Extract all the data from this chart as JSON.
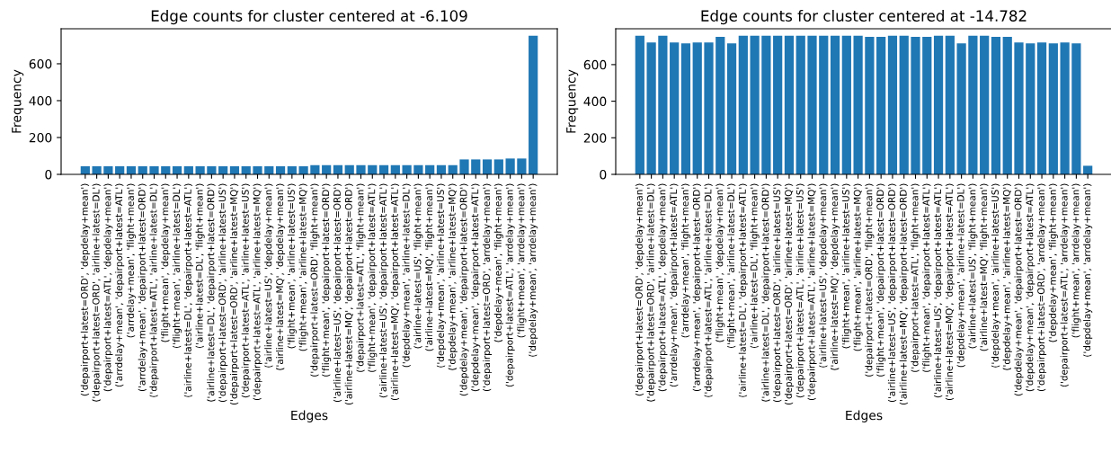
{
  "chart_data": [
    {
      "type": "bar",
      "title": "Edge counts for cluster centered at -6.109",
      "xlabel": "Edges",
      "ylabel": "Frequency",
      "color": "#1f77b4",
      "categories": [
        "('depairport+latest=ORD', 'depdelay+mean')",
        "('depairport+latest=ORD', 'airline+latest=DL')",
        "('depairport+latest=ATL', 'depdelay+mean')",
        "('arrdelay+mean', 'depairport+latest=ATL')",
        "('arrdelay+mean', 'flight+mean')",
        "('arrdelay+mean', 'depairport+latest=ORD')",
        "('depairport+latest=ATL', 'airline+latest=DL')",
        "('flight+mean', 'depdelay+mean')",
        "('flight+mean', 'airline+latest=DL')",
        "('airline+latest=DL', 'depairport+latest=ATL')",
        "('airline+latest=DL', 'flight+mean')",
        "('airline+latest=DL', 'depairport+latest=ORD')",
        "('depairport+latest=ORD', 'airline+latest=US')",
        "('depairport+latest=ORD', 'airline+latest=MQ')",
        "('depairport+latest=ATL', 'airline+latest=US')",
        "('depairport+latest=ATL', 'airline+latest=MQ')",
        "('airline+latest=US', 'depdelay+mean')",
        "('airline+latest=MQ', 'depdelay+mean')",
        "('flight+mean', 'airline+latest=US')",
        "('flight+mean', 'airline+latest=MQ')",
        "('depairport+latest=ORD', 'flight+mean')",
        "('flight+mean', 'depairport+latest=ORD')",
        "('airline+latest=US', 'depairport+latest=ORD')",
        "('airline+latest=MQ', 'depairport+latest=ORD')",
        "('depairport+latest=ATL', 'flight+mean')",
        "('flight+mean', 'depairport+latest=ATL')",
        "('airline+latest=US', 'depairport+latest=ATL')",
        "('airline+latest=MQ', 'depairport+latest=ATL')",
        "('depdelay+mean', 'airline+latest=DL')",
        "('airline+latest=US', 'flight+mean')",
        "('airline+latest=MQ', 'flight+mean')",
        "('depdelay+mean', 'airline+latest=US')",
        "('depdelay+mean', 'airline+latest=MQ')",
        "('depdelay+mean', 'depairport+latest=ORD')",
        "('depdelay+mean', 'depairport+latest=ATL')",
        "('depairport+latest=ORD', 'arrdelay+mean')",
        "('depdelay+mean', 'flight+mean')",
        "('depairport+latest=ATL', 'arrdelay+mean')",
        "('flight+mean', 'arrdelay+mean')",
        "('depdelay+mean', 'arrdelay+mean')"
      ],
      "values": [
        44,
        44,
        44,
        44,
        44,
        44,
        44,
        44,
        44,
        44,
        44,
        44,
        44,
        44,
        44,
        44,
        44,
        44,
        44,
        44,
        50,
        50,
        50,
        50,
        50,
        50,
        50,
        50,
        50,
        50,
        50,
        50,
        50,
        81,
        81,
        81,
        81,
        86,
        86,
        752
      ],
      "ylim": [
        0,
        790
      ],
      "yticks": [
        0,
        200,
        400,
        600
      ]
    },
    {
      "type": "bar",
      "title": "Edge counts for cluster centered at -14.782",
      "xlabel": "Edges",
      "ylabel": "Frequency",
      "color": "#1f77b4",
      "categories": [
        "('depairport+latest=ORD', 'depdelay+mean')",
        "('depairport+latest=ORD', 'airline+latest=DL')",
        "('depairport+latest=ATL', 'depdelay+mean')",
        "('arrdelay+mean', 'depairport+latest=ATL')",
        "('arrdelay+mean', 'flight+mean')",
        "('arrdelay+mean', 'depairport+latest=ORD')",
        "('depairport+latest=ATL', 'airline+latest=DL')",
        "('flight+mean', 'depdelay+mean')",
        "('flight+mean', 'airline+latest=DL')",
        "('airline+latest=DL', 'depairport+latest=ATL')",
        "('airline+latest=DL', 'flight+mean')",
        "('airline+latest=DL', 'depairport+latest=ORD')",
        "('depairport+latest=ORD', 'airline+latest=US')",
        "('depairport+latest=ORD', 'airline+latest=MQ')",
        "('depairport+latest=ATL', 'airline+latest=US')",
        "('depairport+latest=ATL', 'airline+latest=MQ')",
        "('airline+latest=US', 'depdelay+mean')",
        "('airline+latest=MQ', 'depdelay+mean')",
        "('flight+mean', 'airline+latest=US')",
        "('flight+mean', 'airline+latest=MQ')",
        "('depairport+latest=ORD', 'flight+mean')",
        "('flight+mean', 'depairport+latest=ORD')",
        "('airline+latest=US', 'depairport+latest=ORD')",
        "('airline+latest=MQ', 'depairport+latest=ORD')",
        "('depairport+latest=ATL', 'flight+mean')",
        "('flight+mean', 'depairport+latest=ATL')",
        "('airline+latest=US', 'depairport+latest=ATL')",
        "('airline+latest=MQ', 'depairport+latest=ATL')",
        "('depdelay+mean', 'airline+latest=DL')",
        "('airline+latest=US', 'flight+mean')",
        "('airline+latest=MQ', 'flight+mean')",
        "('depdelay+mean', 'airline+latest=US')",
        "('depdelay+mean', 'airline+latest=MQ')",
        "('depdelay+mean', 'depairport+latest=ORD')",
        "('depdelay+mean', 'depairport+latest=ATL')",
        "('depairport+latest=ORD', 'arrdelay+mean')",
        "('depdelay+mean', 'flight+mean')",
        "('depairport+latest=ATL', 'arrdelay+mean')",
        "('flight+mean', 'arrdelay+mean')",
        "('depdelay+mean', 'arrdelay+mean')"
      ],
      "values": [
        758,
        721,
        758,
        721,
        716,
        721,
        721,
        752,
        716,
        758,
        758,
        758,
        758,
        758,
        758,
        758,
        758,
        758,
        758,
        758,
        752,
        752,
        758,
        758,
        752,
        752,
        758,
        758,
        716,
        758,
        758,
        752,
        752,
        721,
        716,
        721,
        716,
        721,
        716,
        47
      ],
      "ylim": [
        0,
        796
      ],
      "yticks": [
        0,
        200,
        400,
        600
      ]
    }
  ]
}
